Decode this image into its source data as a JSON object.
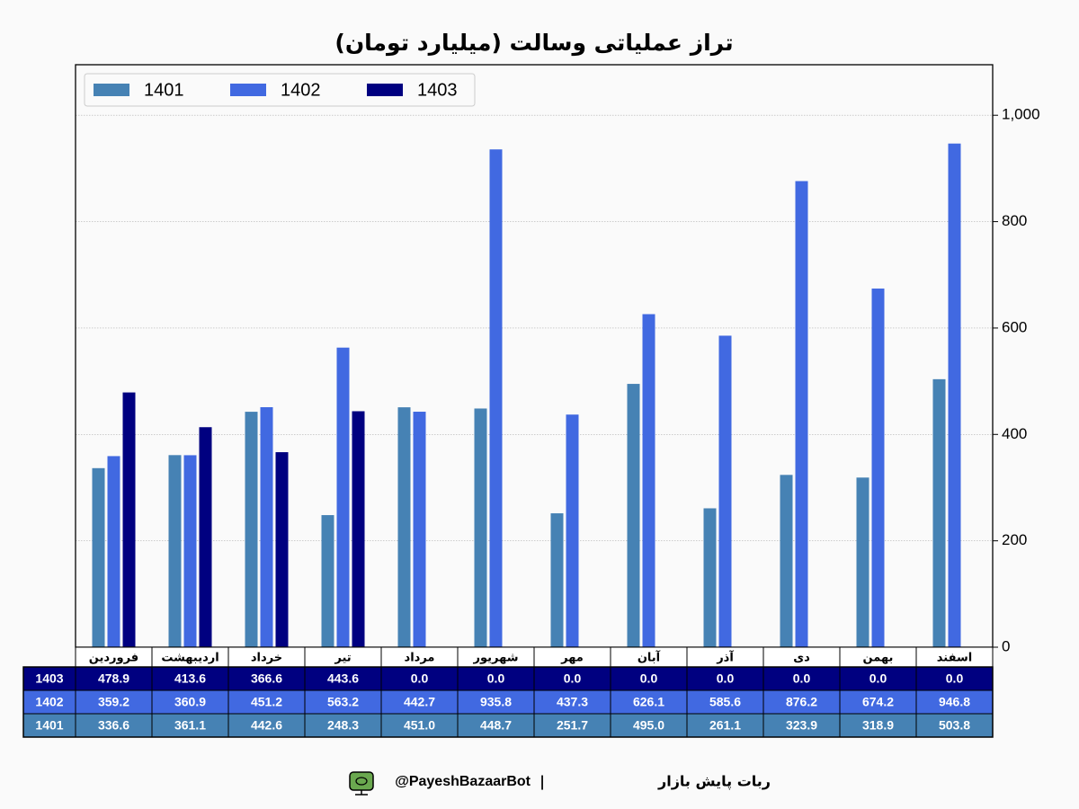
{
  "chart_data": {
    "type": "bar",
    "title": "تراز عملیاتی وسالت (میلیارد تومان)",
    "categories": [
      "فروردین",
      "اردیبهشت",
      "خرداد",
      "تیر",
      "مرداد",
      "شهریور",
      "مهر",
      "آبان",
      "آذر",
      "دی",
      "بهمن",
      "اسفند"
    ],
    "series": [
      {
        "name": "1401",
        "color": "#4682b4",
        "values": [
          336.6,
          361.1,
          442.6,
          248.3,
          451.0,
          448.7,
          251.7,
          495.0,
          261.1,
          323.9,
          318.9,
          503.8
        ],
        "value_labels": [
          "336.6",
          "361.1",
          "442.6",
          "248.3",
          "451.0",
          "448.7",
          "251.7",
          "495.0",
          "261.1",
          "323.9",
          "318.9",
          "503.8"
        ]
      },
      {
        "name": "1402",
        "color": "#4169e1",
        "values": [
          359.2,
          360.9,
          451.2,
          563.2,
          442.7,
          935.8,
          437.3,
          626.1,
          585.6,
          876.2,
          674.2,
          946.8
        ],
        "value_labels": [
          "359.2",
          "360.9",
          "451.2",
          "563.2",
          "442.7",
          "935.8",
          "437.3",
          "626.1",
          "585.6",
          "876.2",
          "674.2",
          "946.8"
        ]
      },
      {
        "name": "1403",
        "color": "#000080",
        "values": [
          478.9,
          413.6,
          366.6,
          443.6,
          0,
          0,
          0,
          0,
          0,
          0,
          0,
          0
        ],
        "value_labels": [
          "478.9",
          "413.6",
          "366.6",
          "443.6",
          "0.0",
          "0.0",
          "0.0",
          "0.0",
          "0.0",
          "0.0",
          "0.0",
          "0.0"
        ]
      }
    ],
    "ylim": [
      0,
      1095
    ],
    "yticks": [
      0,
      200,
      400,
      600,
      800,
      {
        "value": 1000,
        "label": "1,000"
      }
    ],
    "grid": true,
    "legend": "upper left"
  },
  "footer": {
    "bot_name": "ربات پایش بازار",
    "separator": "|",
    "handle": "@PayeshBazaarBot"
  }
}
